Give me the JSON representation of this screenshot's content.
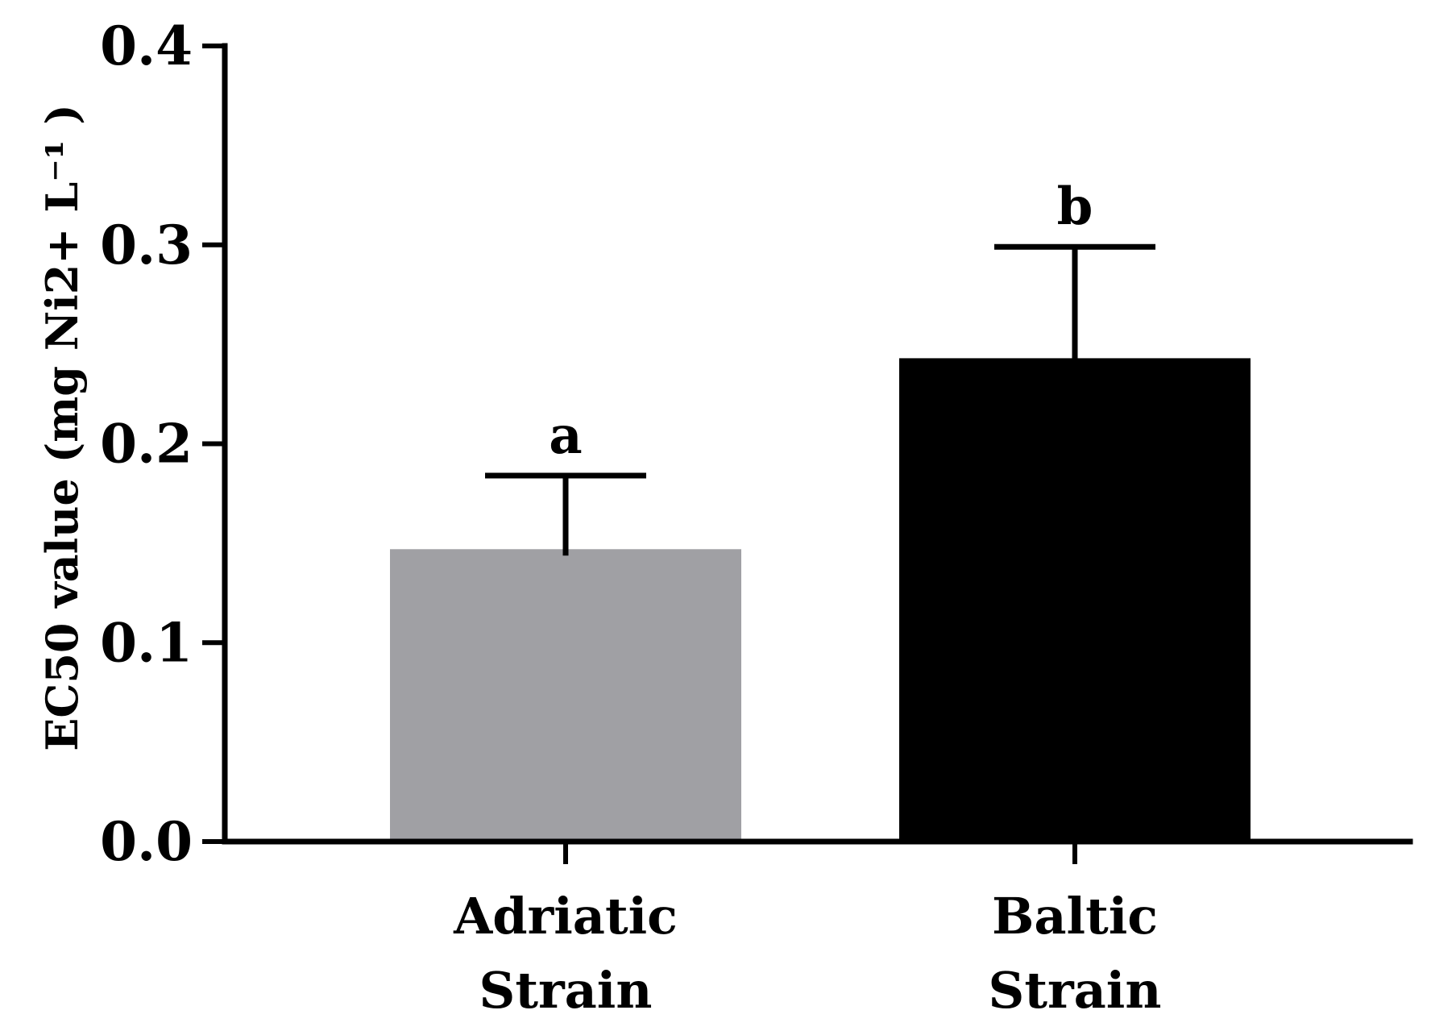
{
  "chart_data": {
    "type": "bar",
    "title": "",
    "xlabel": "",
    "ylabel": "EC50 value (mg Ni2+ L⁻¹ )",
    "ylim": [
      0,
      0.4
    ],
    "yticks": [
      0.0,
      0.1,
      0.2,
      0.3,
      0.4
    ],
    "ytick_labels": [
      "0.0",
      "0.1",
      "0.2",
      "0.3",
      "0.4"
    ],
    "categories": [
      {
        "line1": "Adriatic",
        "line2": "Strain"
      },
      {
        "line1": "Baltic",
        "line2": "Strain"
      }
    ],
    "values": [
      0.147,
      0.243
    ],
    "errors": [
      0.037,
      0.056
    ],
    "significance_letters": [
      "a",
      "b"
    ],
    "bar_colors": [
      "#a0a0a4",
      "#000000"
    ],
    "grid": false,
    "legend": "none"
  }
}
